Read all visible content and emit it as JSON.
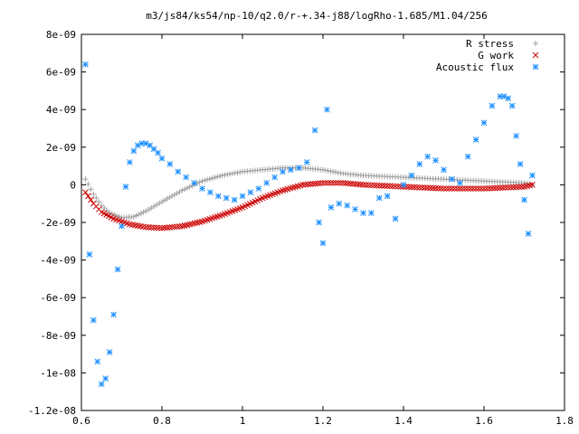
{
  "chart_data": {
    "type": "scatter",
    "title": "m3/js84/ks54/np-10/q2.0/r-+.34-j88/logRho-1.685/M1.04/256",
    "xlabel": "",
    "ylabel": "",
    "xlim": [
      0.6,
      1.8
    ],
    "ylim": [
      -1.2e-08,
      8e-09
    ],
    "grid": false,
    "legend_position": "top-right",
    "x_ticks": [
      0.6,
      0.8,
      1,
      1.2,
      1.4,
      1.6,
      1.8
    ],
    "x_tick_labels": [
      "0.6",
      "0.8",
      "1",
      "1.2",
      "1.4",
      "1.6",
      "1.8"
    ],
    "y_ticks": [
      8e-09,
      6e-09,
      4e-09,
      2e-09,
      0,
      -2e-09,
      -4e-09,
      -6e-09,
      -8e-09,
      -1e-08,
      -1.2e-08
    ],
    "y_tick_labels": [
      "8e-09",
      "6e-09",
      "4e-09",
      "2e-09",
      "0",
      "-2e-09",
      "-4e-09",
      "-6e-09",
      "-8e-09",
      "-1e-08",
      "-1.2e-08"
    ],
    "series": [
      {
        "name": "R stress",
        "marker": "plus",
        "color": "#a0a0a0",
        "x": [
          0.61,
          0.63,
          0.65,
          0.67,
          0.7,
          0.73,
          0.76,
          0.8,
          0.85,
          0.9,
          0.95,
          1.0,
          1.05,
          1.1,
          1.15,
          1.2,
          1.25,
          1.3,
          1.4,
          1.5,
          1.6,
          1.7,
          1.72
        ],
        "y": [
          3e-10,
          -5e-10,
          -1.1e-09,
          -1.5e-09,
          -1.75e-09,
          -1.7e-09,
          -1.4e-09,
          -9e-10,
          -3e-10,
          2e-10,
          5e-10,
          7e-10,
          8e-10,
          9e-10,
          9e-10,
          8e-10,
          6e-10,
          5e-10,
          4e-10,
          3e-10,
          2e-10,
          1e-10,
          0
        ]
      },
      {
        "name": "G work",
        "marker": "cross",
        "color": "#cc0000",
        "x": [
          0.61,
          0.63,
          0.65,
          0.68,
          0.72,
          0.76,
          0.8,
          0.85,
          0.9,
          0.95,
          1.0,
          1.05,
          1.1,
          1.15,
          1.2,
          1.25,
          1.3,
          1.4,
          1.5,
          1.6,
          1.7,
          1.72
        ],
        "y": [
          -4e-10,
          -1e-09,
          -1.45e-09,
          -1.8e-09,
          -2.1e-09,
          -2.25e-09,
          -2.3e-09,
          -2.2e-09,
          -1.95e-09,
          -1.6e-09,
          -1.2e-09,
          -7e-10,
          -3e-10,
          0,
          1e-10,
          1e-10,
          0,
          -1e-10,
          -2e-10,
          -2e-10,
          -1e-10,
          0
        ]
      },
      {
        "name": "Acoustic flux",
        "marker": "star",
        "color": "#1e90ff",
        "x": [
          0.61,
          0.62,
          0.63,
          0.64,
          0.65,
          0.66,
          0.67,
          0.68,
          0.69,
          0.7,
          0.71,
          0.72,
          0.73,
          0.74,
          0.75,
          0.76,
          0.77,
          0.78,
          0.79,
          0.8,
          0.82,
          0.84,
          0.86,
          0.88,
          0.9,
          0.92,
          0.94,
          0.96,
          0.98,
          1.0,
          1.02,
          1.04,
          1.06,
          1.08,
          1.1,
          1.12,
          1.14,
          1.16,
          1.18,
          1.19,
          1.2,
          1.21,
          1.22,
          1.24,
          1.26,
          1.28,
          1.3,
          1.32,
          1.34,
          1.36,
          1.38,
          1.4,
          1.42,
          1.44,
          1.46,
          1.48,
          1.5,
          1.52,
          1.54,
          1.56,
          1.58,
          1.6,
          1.62,
          1.64,
          1.65,
          1.66,
          1.67,
          1.68,
          1.69,
          1.7,
          1.71,
          1.72
        ],
        "y": [
          6.4e-09,
          -3.7e-09,
          -7.2e-09,
          -9.4e-09,
          -1.06e-08,
          -1.03e-08,
          -8.9e-09,
          -6.9e-09,
          -4.5e-09,
          -2.2e-09,
          -1e-10,
          1.2e-09,
          1.8e-09,
          2.1e-09,
          2.2e-09,
          2.2e-09,
          2.1e-09,
          1.9e-09,
          1.7e-09,
          1.4e-09,
          1.1e-09,
          7e-10,
          4e-10,
          1e-10,
          -2e-10,
          -4e-10,
          -6e-10,
          -7e-10,
          -8e-10,
          -6e-10,
          -4e-10,
          -2e-10,
          1e-10,
          4e-10,
          7e-10,
          8e-10,
          9e-10,
          1.2e-09,
          2.9e-09,
          -2e-09,
          -3.1e-09,
          4e-09,
          -1.2e-09,
          -1e-09,
          -1.1e-09,
          -1.3e-09,
          -1.5e-09,
          -1.5e-09,
          -7e-10,
          -6e-10,
          -1.8e-09,
          0,
          5e-10,
          1.1e-09,
          1.5e-09,
          1.3e-09,
          8e-10,
          3e-10,
          1e-10,
          1.5e-09,
          2.4e-09,
          3.3e-09,
          4.2e-09,
          4.7e-09,
          4.7e-09,
          4.6e-09,
          4.2e-09,
          2.6e-09,
          1.1e-09,
          -8e-10,
          -2.6e-09,
          5e-10
        ]
      }
    ]
  }
}
